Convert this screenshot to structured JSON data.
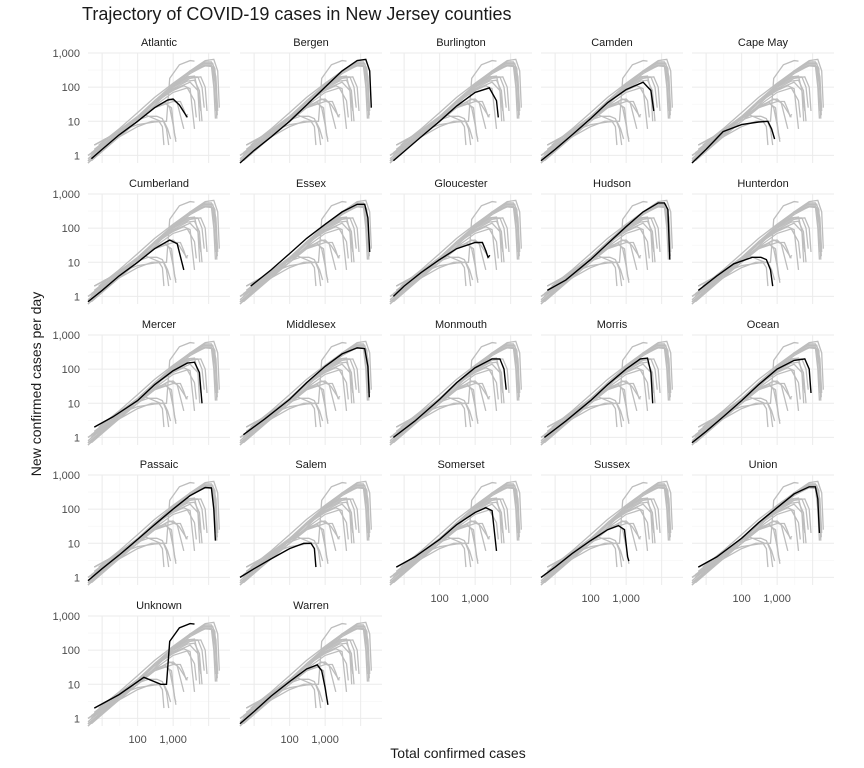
{
  "title": "Trajectory of COVID-19 cases in New Jersey counties",
  "chart_data": {
    "type": "line",
    "title": "Trajectory of COVID-19 cases in New Jersey counties",
    "xlabel": "Total confirmed cases",
    "ylabel": "New confirmed cases per day",
    "x_scale": "log10",
    "y_scale": "log10",
    "xlim": [
      4,
      40000
    ],
    "ylim": [
      0.6,
      1000
    ],
    "x_ticks": [
      {
        "value": 100,
        "label": "100"
      },
      {
        "value": 1000,
        "label": "1,000"
      }
    ],
    "y_ticks": [
      {
        "value": 1,
        "label": "1"
      },
      {
        "value": 10,
        "label": "10"
      },
      {
        "value": 100,
        "label": "100"
      },
      {
        "value": 1000,
        "label": "1,000"
      }
    ],
    "grid": true,
    "background_color": "#bdbdbd",
    "highlight_color": "#000000",
    "facets": [
      {
        "name": "Atlantic",
        "x": [
          5,
          10,
          30,
          100,
          300,
          700,
          1000,
          1500,
          2500
        ],
        "y": [
          0.8,
          1.5,
          4,
          10,
          25,
          42,
          45,
          30,
          13
        ]
      },
      {
        "name": "Bergen",
        "x": [
          4,
          10,
          30,
          100,
          300,
          1000,
          3000,
          8000,
          14000,
          18000,
          20000
        ],
        "y": [
          0.6,
          1.4,
          3.5,
          10,
          30,
          100,
          300,
          600,
          650,
          300,
          25
        ]
      },
      {
        "name": "Burlington",
        "x": [
          5,
          10,
          30,
          100,
          300,
          1000,
          2500,
          4000,
          4500
        ],
        "y": [
          0.7,
          1.3,
          3.5,
          10,
          28,
          70,
          95,
          40,
          13
        ]
      },
      {
        "name": "Camden",
        "x": [
          4,
          10,
          30,
          100,
          300,
          1000,
          3000,
          5000,
          6000
        ],
        "y": [
          0.7,
          1.5,
          4,
          12,
          35,
          85,
          140,
          80,
          20
        ]
      },
      {
        "name": "Cape May",
        "x": [
          4,
          10,
          30,
          100,
          300,
          550,
          700,
          850
        ],
        "y": [
          0.6,
          1.5,
          5,
          8,
          9.5,
          10,
          6,
          3
        ]
      },
      {
        "name": "Cumberland",
        "x": [
          4,
          10,
          30,
          100,
          300,
          800,
          1300,
          2000
        ],
        "y": [
          0.7,
          1.5,
          4,
          10,
          25,
          45,
          35,
          6
        ]
      },
      {
        "name": "Essex",
        "x": [
          8,
          30,
          100,
          300,
          1000,
          3000,
          8000,
          13000,
          16000,
          18000
        ],
        "y": [
          2,
          6,
          18,
          50,
          130,
          300,
          500,
          500,
          200,
          20
        ]
      },
      {
        "name": "Gloucester",
        "x": [
          5,
          10,
          30,
          100,
          300,
          1000,
          1600,
          2000,
          2300,
          2600
        ],
        "y": [
          1,
          2,
          5,
          12,
          25,
          38,
          38,
          22,
          14,
          16
        ]
      },
      {
        "name": "Hudson",
        "x": [
          6,
          20,
          100,
          300,
          1000,
          3000,
          8000,
          12000,
          15000,
          17000
        ],
        "y": [
          1.5,
          3,
          12,
          35,
          110,
          300,
          550,
          550,
          350,
          12
        ]
      },
      {
        "name": "Hunterdon",
        "x": [
          6,
          20,
          60,
          200,
          350,
          500,
          650,
          750
        ],
        "y": [
          1.5,
          4,
          9,
          14,
          14,
          12,
          6,
          2
        ]
      },
      {
        "name": "Mercer",
        "x": [
          6,
          20,
          100,
          300,
          1000,
          2500,
          4000,
          5500,
          6500
        ],
        "y": [
          2,
          4,
          12,
          35,
          90,
          150,
          160,
          80,
          10
        ]
      },
      {
        "name": "Middlesex",
        "x": [
          5,
          20,
          100,
          300,
          1000,
          3000,
          8000,
          13000,
          16000,
          17500
        ],
        "y": [
          1.2,
          3.5,
          13,
          40,
          120,
          280,
          420,
          400,
          120,
          15
        ]
      },
      {
        "name": "Monmouth",
        "x": [
          5,
          20,
          100,
          300,
          1000,
          3000,
          5000,
          6500,
          7500
        ],
        "y": [
          1,
          3,
          13,
          40,
          110,
          200,
          200,
          100,
          25
        ]
      },
      {
        "name": "Morris",
        "x": [
          5,
          20,
          100,
          300,
          1000,
          2500,
          4000,
          5000,
          5600
        ],
        "y": [
          1,
          3,
          12,
          35,
          100,
          200,
          210,
          80,
          10
        ]
      },
      {
        "name": "Ocean",
        "x": [
          4,
          10,
          30,
          100,
          300,
          1000,
          3000,
          6000,
          8000,
          9000
        ],
        "y": [
          0.7,
          1.5,
          4,
          12,
          35,
          100,
          180,
          200,
          100,
          20
        ]
      },
      {
        "name": "Passaic",
        "x": [
          4,
          10,
          30,
          100,
          300,
          1000,
          3000,
          8000,
          12000,
          14000,
          15500
        ],
        "y": [
          0.8,
          1.8,
          4.5,
          13,
          35,
          100,
          250,
          430,
          420,
          100,
          12
        ]
      },
      {
        "name": "Salem",
        "x": [
          4,
          10,
          30,
          100,
          250,
          400,
          500,
          550
        ],
        "y": [
          1,
          1.8,
          3.5,
          7,
          10,
          10,
          7,
          2
        ]
      },
      {
        "name": "Somerset",
        "x": [
          6,
          20,
          100,
          300,
          1000,
          2000,
          3000,
          4000
        ],
        "y": [
          2,
          4,
          13,
          35,
          80,
          110,
          90,
          6
        ]
      },
      {
        "name": "Sussex",
        "x": [
          4,
          10,
          30,
          100,
          300,
          600,
          900,
          1100,
          1200
        ],
        "y": [
          1,
          2,
          5,
          12,
          25,
          33,
          25,
          4,
          3
        ]
      },
      {
        "name": "Union",
        "x": [
          6,
          20,
          100,
          300,
          1000,
          3000,
          8000,
          12000,
          14000,
          15500
        ],
        "y": [
          2,
          4,
          14,
          40,
          110,
          280,
          450,
          450,
          200,
          20
        ]
      },
      {
        "name": "Unknown",
        "x": [
          6,
          30,
          150,
          450,
          650,
          800,
          1500,
          3000,
          4000
        ],
        "y": [
          2,
          5,
          16,
          10,
          10,
          180,
          450,
          600,
          580
        ]
      },
      {
        "name": "Warren",
        "x": [
          4,
          10,
          30,
          100,
          300,
          600,
          800,
          1000,
          1200
        ],
        "y": [
          0.7,
          1.6,
          4.5,
          12,
          28,
          37,
          25,
          8,
          2.5
        ]
      }
    ]
  }
}
